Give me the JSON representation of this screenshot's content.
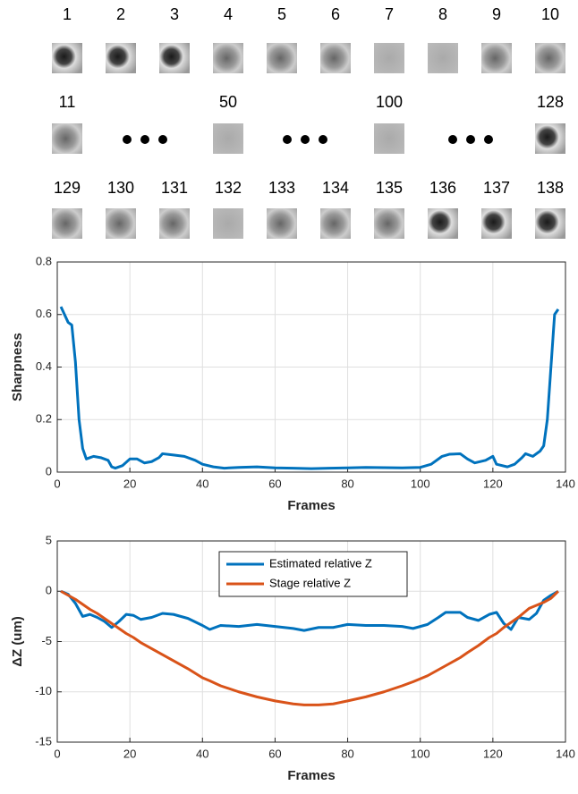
{
  "frames": {
    "rows": [
      [
        "1",
        "2",
        "3",
        "4",
        "5",
        "6",
        "7",
        "8",
        "9",
        "10"
      ],
      [
        "11",
        "50",
        "100",
        "128"
      ],
      [
        "129",
        "130",
        "131",
        "132",
        "133",
        "134",
        "135",
        "136",
        "137",
        "138"
      ]
    ]
  },
  "chart_data": [
    {
      "type": "line",
      "xlabel": "Frames",
      "ylabel": "Sharpness",
      "x": [
        1,
        2,
        3,
        4,
        5,
        6,
        7,
        8,
        9,
        10,
        12,
        14,
        15,
        16,
        18,
        20,
        22,
        24,
        26,
        28,
        29,
        32,
        35,
        38,
        40,
        43,
        46,
        50,
        55,
        60,
        65,
        70,
        75,
        80,
        85,
        90,
        95,
        100,
        103,
        106,
        108,
        111,
        113,
        115,
        118,
        120,
        121,
        124,
        126,
        128,
        129,
        131,
        133,
        134,
        135,
        136,
        137,
        138
      ],
      "series": [
        {
          "name": "Sharpness",
          "color": "#0072bd",
          "values": [
            0.63,
            0.6,
            0.57,
            0.56,
            0.42,
            0.2,
            0.09,
            0.05,
            0.055,
            0.06,
            0.055,
            0.045,
            0.02,
            0.015,
            0.025,
            0.05,
            0.05,
            0.035,
            0.04,
            0.055,
            0.07,
            0.065,
            0.06,
            0.045,
            0.03,
            0.02,
            0.015,
            0.018,
            0.02,
            0.016,
            0.015,
            0.013,
            0.015,
            0.016,
            0.018,
            0.017,
            0.016,
            0.018,
            0.03,
            0.06,
            0.068,
            0.07,
            0.05,
            0.035,
            0.045,
            0.06,
            0.03,
            0.02,
            0.03,
            0.055,
            0.07,
            0.06,
            0.08,
            0.1,
            0.2,
            0.4,
            0.6,
            0.62
          ]
        }
      ],
      "xlim": [
        0,
        140
      ],
      "xticks": [
        0,
        20,
        40,
        60,
        80,
        100,
        120,
        140
      ],
      "ylim": [
        0,
        0.8
      ],
      "yticks": [
        0,
        0.2,
        0.4,
        0.6,
        0.8
      ],
      "grid": true
    },
    {
      "type": "line",
      "xlabel": "Frames",
      "ylabel": "ΔZ (um)",
      "x": [
        1,
        3,
        5,
        7,
        9,
        11,
        13,
        15,
        17,
        19,
        21,
        23,
        26,
        29,
        32,
        36,
        40,
        42,
        45,
        50,
        55,
        60,
        65,
        68,
        72,
        76,
        80,
        85,
        90,
        95,
        98,
        102,
        105,
        107,
        111,
        113,
        116,
        119,
        121,
        123,
        125,
        127,
        130,
        132,
        134,
        136,
        138
      ],
      "series": [
        {
          "name": "Estimated relative Z",
          "color": "#0072bd",
          "values": [
            0,
            -0.3,
            -1.2,
            -2.5,
            -2.3,
            -2.6,
            -3.0,
            -3.6,
            -3.0,
            -2.3,
            -2.4,
            -2.8,
            -2.6,
            -2.2,
            -2.3,
            -2.7,
            -3.4,
            -3.8,
            -3.4,
            -3.5,
            -3.3,
            -3.5,
            -3.7,
            -3.9,
            -3.6,
            -3.6,
            -3.3,
            -3.4,
            -3.4,
            -3.5,
            -3.7,
            -3.3,
            -2.6,
            -2.1,
            -2.1,
            -2.6,
            -2.9,
            -2.3,
            -2.1,
            -3.2,
            -3.8,
            -2.6,
            -2.8,
            -2.2,
            -0.9,
            -0.4,
            0
          ]
        },
        {
          "name": "Stage relative Z",
          "color": "#d95319",
          "values": [
            0,
            -0.4,
            -0.8,
            -1.3,
            -1.8,
            -2.2,
            -2.7,
            -3.2,
            -3.7,
            -4.2,
            -4.6,
            -5.1,
            -5.7,
            -6.3,
            -6.9,
            -7.7,
            -8.6,
            -8.9,
            -9.4,
            -10.0,
            -10.5,
            -10.9,
            -11.2,
            -11.3,
            -11.3,
            -11.2,
            -10.9,
            -10.5,
            -10.0,
            -9.4,
            -9.0,
            -8.4,
            -7.8,
            -7.4,
            -6.6,
            -6.1,
            -5.4,
            -4.6,
            -4.2,
            -3.6,
            -3.1,
            -2.6,
            -1.7,
            -1.4,
            -1.1,
            -0.7,
            0
          ]
        }
      ],
      "xlim": [
        0,
        140
      ],
      "xticks": [
        0,
        20,
        40,
        60,
        80,
        100,
        120,
        140
      ],
      "ylim": [
        -15,
        5
      ],
      "yticks": [
        -15,
        -10,
        -5,
        0,
        5
      ],
      "grid": true,
      "legend": "top"
    }
  ]
}
